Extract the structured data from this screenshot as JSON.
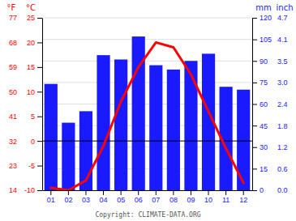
{
  "chart_data": {
    "type": "bar",
    "categories": [
      "01",
      "02",
      "03",
      "04",
      "05",
      "06",
      "07",
      "08",
      "09",
      "10",
      "11",
      "12"
    ],
    "series": [
      {
        "type": "bar",
        "color": "#1a1aff",
        "axis": "y2",
        "values": [
          74,
          47,
          55,
          94,
          91,
          107,
          87,
          84,
          90,
          95,
          72,
          70
        ]
      },
      {
        "type": "line",
        "color": "#ff0000",
        "values": [
          -9.5,
          -10.0,
          -8.0,
          -1.0,
          8.0,
          15.0,
          20.0,
          19.0,
          13.5,
          6.0,
          -1.5,
          -8.5
        ]
      }
    ],
    "ylabel": "°C",
    "ylim": [
      -10,
      25
    ],
    "yticks": [
      -10,
      -5,
      0,
      5,
      10,
      15,
      20,
      25
    ],
    "y_outer_label": "°F",
    "y_outer_ticks": [
      {
        "value": -10,
        "label": "14"
      },
      {
        "value": -5,
        "label": "23"
      },
      {
        "value": 0,
        "label": "32"
      },
      {
        "value": 5,
        "label": "41"
      },
      {
        "value": 10,
        "label": "50"
      },
      {
        "value": 15,
        "label": "59"
      },
      {
        "value": 20,
        "label": "68"
      },
      {
        "value": 25,
        "label": "77"
      }
    ],
    "y2label": "mm",
    "y2lim": [
      0,
      120
    ],
    "y2ticks": [
      0,
      15,
      30,
      45,
      60,
      75,
      90,
      105,
      120
    ],
    "y2_outer_label": "inch",
    "y2_outer_ticks": [
      {
        "value": 0,
        "label": "0.0"
      },
      {
        "value": 15,
        "label": "0.6"
      },
      {
        "value": 30,
        "label": "1.2"
      },
      {
        "value": 45,
        "label": "1.8"
      },
      {
        "value": 60,
        "label": "2.4"
      },
      {
        "value": 75,
        "label": "3.0"
      },
      {
        "value": 90,
        "label": "3.5"
      },
      {
        "value": 105,
        "label": "4.1"
      },
      {
        "value": 120,
        "label": "4.7"
      }
    ],
    "reference_line": {
      "value": 0,
      "axis": "y",
      "color": "#000000"
    },
    "grid": true,
    "caption": "Copyright: CLIMATE-DATA.ORG"
  }
}
